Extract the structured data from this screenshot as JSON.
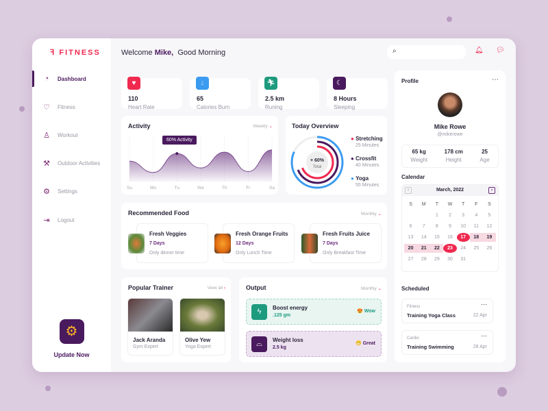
{
  "brand": "FITNESS",
  "header": {
    "welcome": "Welcome",
    "name": "Mike,",
    "greeting": "Good Morning",
    "search_placeholder": ""
  },
  "sidebar": {
    "items": [
      {
        "label": "Dashboard",
        "icon": "speedometer-icon"
      },
      {
        "label": "Fitness",
        "icon": "heart-pulse-icon"
      },
      {
        "label": "Workout",
        "icon": "workout-icon"
      },
      {
        "label": "Outdoor Activities",
        "icon": "dumbbell-icon"
      },
      {
        "label": "Settings",
        "icon": "gear-icon"
      },
      {
        "label": "Logout",
        "icon": "logout-icon"
      }
    ],
    "update": "Update Now"
  },
  "stats": [
    {
      "value": "110",
      "label": "Heart Rate",
      "color": "#f0294f"
    },
    {
      "value": "65",
      "label": "Calories Burn",
      "color": "#3b9bf0"
    },
    {
      "value": "2.5 km",
      "label": "Runing",
      "color": "#1e9b7f"
    },
    {
      "value": "8 Hours",
      "label": "Sleeping",
      "color": "#4a1a5e"
    }
  ],
  "activity": {
    "title": "Activity",
    "filter": "Weekly",
    "tooltip": "60% Activity",
    "days": [
      "Su",
      "Mo",
      "Tu",
      "We",
      "Th",
      "Fr",
      "Sa"
    ],
    "values": [
      45,
      20,
      62,
      30,
      65,
      22,
      70
    ]
  },
  "overview": {
    "title": "Today Overview",
    "center": "+ 60%",
    "center_label": "Total",
    "items": [
      {
        "name": "Stretching",
        "time": "25 Minutes",
        "color": "#f0294f"
      },
      {
        "name": "Crossfit",
        "time": "40 Minutes",
        "color": "#4a1a5e"
      },
      {
        "name": "Yoga",
        "time": "55 Minutes",
        "color": "#3b9bf0"
      }
    ]
  },
  "food": {
    "title": "Recommended Food",
    "filter": "Monthly",
    "items": [
      {
        "name": "Fresh Veggies",
        "days": "7 Days",
        "time": "Only dinner time"
      },
      {
        "name": "Fresh Orange Fruits",
        "days": "12 Days",
        "time": "Only Lunch Time"
      },
      {
        "name": "Fresh Fruits Juice",
        "days": "7 Days",
        "time": "Only Breakfast Time"
      }
    ]
  },
  "trainers": {
    "title": "Popular Trainer",
    "view_all": "View all",
    "items": [
      {
        "name": "Jack Aranda",
        "role": "Gym Expert"
      },
      {
        "name": "Olive Yew",
        "role": "Yoga Expert"
      }
    ]
  },
  "output": {
    "title": "Output",
    "filter": "Monthly",
    "items": [
      {
        "name": "Boost energy",
        "value": ".125 gm",
        "emoji": "😍",
        "status": "Wow"
      },
      {
        "name": "Weight loss",
        "value": "2.5 kg",
        "emoji": "😁",
        "status": "Great"
      }
    ]
  },
  "profile": {
    "title": "Profile",
    "name": "Mike Rowe",
    "handle": "@mikerowe",
    "stats": [
      {
        "value": "65 kg",
        "label": "Weight"
      },
      {
        "value": "178 cm",
        "label": "Height"
      },
      {
        "value": "25",
        "label": "Age"
      }
    ]
  },
  "calendar": {
    "title": "Calendar",
    "month": "March, 2022",
    "weekdays": [
      "S",
      "M",
      "T",
      "W",
      "T",
      "F",
      "S"
    ],
    "start_offset": 2,
    "days": 31,
    "range_start": 17,
    "range_end": 23
  },
  "scheduled": {
    "title": "Scheduled",
    "items": [
      {
        "category": "Fitness",
        "name": "Training Yoga Class",
        "date": "22 Apr"
      },
      {
        "category": "Cardio",
        "name": "Training Swimming",
        "date": "28 Apr"
      }
    ]
  }
}
